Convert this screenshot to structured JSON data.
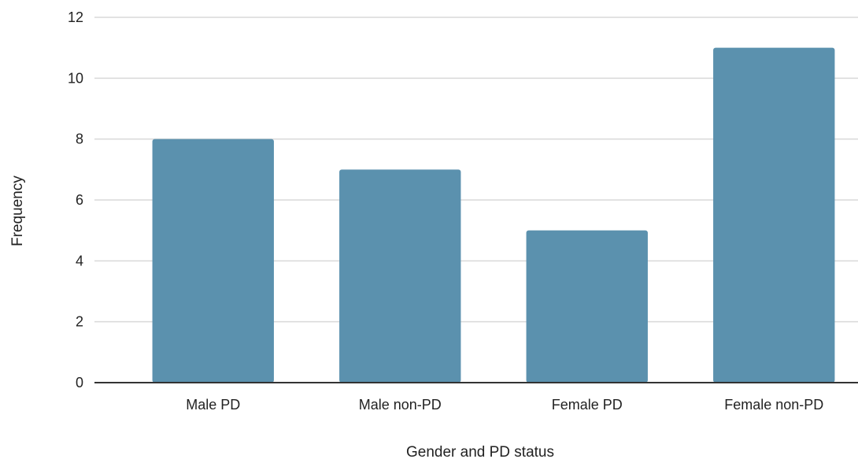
{
  "chart_data": {
    "type": "bar",
    "categories": [
      "Male PD",
      "Male non-PD",
      "Female PD",
      "Female non-PD"
    ],
    "values": [
      8,
      7,
      5,
      11
    ],
    "title": "",
    "xlabel": "Gender and PD status",
    "ylabel": "Frequency",
    "ylim": [
      0,
      12
    ],
    "yticks": [
      0,
      2,
      4,
      6,
      8,
      10,
      12
    ],
    "grid": true,
    "legend": "none",
    "colors": {
      "bar": "#5b91ae",
      "grid": "#d9d9d9",
      "axis": "#333333"
    }
  }
}
